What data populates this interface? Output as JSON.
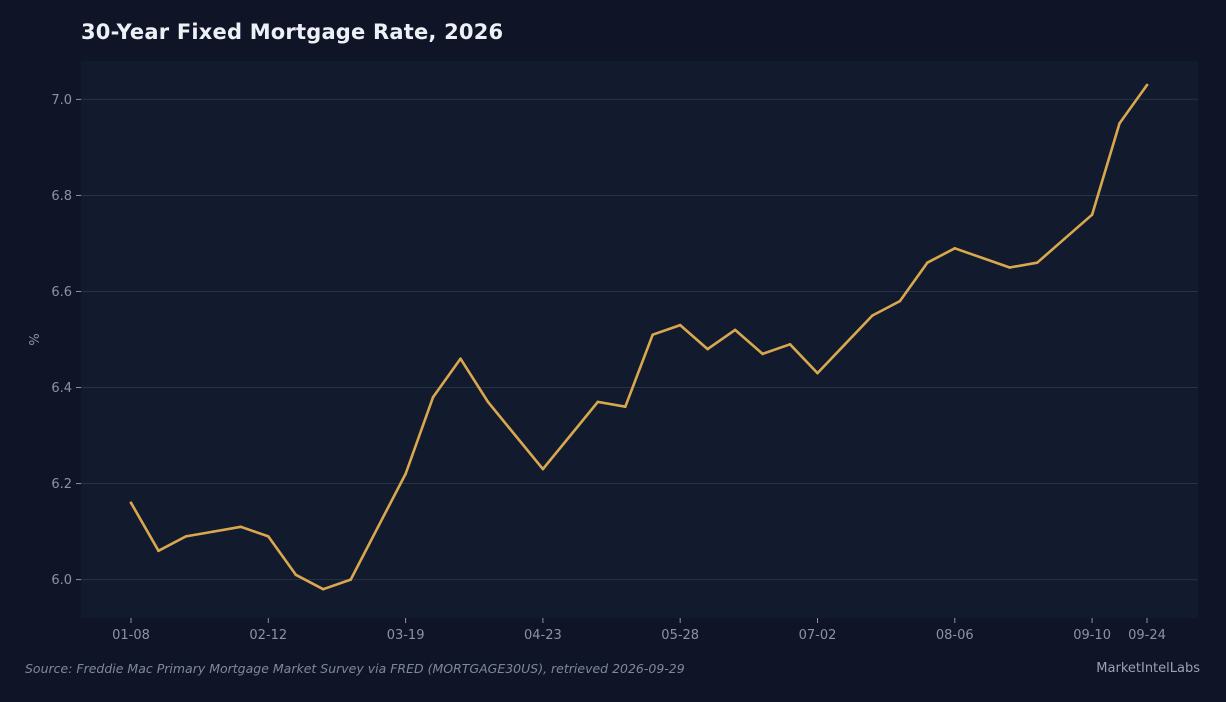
{
  "title": "30-Year Fixed Mortgage Rate, 2026",
  "source": "Source: Freddie Mac Primary Mortgage Market Survey via FRED (MORTGAGE30US), retrieved 2026-09-29",
  "brand": "MarketIntelLabs",
  "colors": {
    "page_background": "#0f1526",
    "plot_background": "#121b2e",
    "grid": "#263247",
    "line": "#d9a84e",
    "tick_text": "#8a93a6"
  },
  "chart_data": {
    "type": "line",
    "title": "30-Year Fixed Mortgage Rate, 2026",
    "xlabel": "",
    "ylabel": "%",
    "ylim": [
      5.92,
      7.08
    ],
    "yticks": [
      6.0,
      6.2,
      6.4,
      6.6,
      6.8,
      7.0
    ],
    "ytick_labels": [
      "6.0",
      "6.2",
      "6.4",
      "6.6",
      "6.8",
      "7.0"
    ],
    "xtick_labels": [
      "01-08",
      "02-12",
      "03-19",
      "04-23",
      "05-28",
      "07-02",
      "08-06",
      "09-10",
      "09-24"
    ],
    "grid": true,
    "x": [
      "01-08",
      "01-15",
      "01-22",
      "01-29",
      "02-05",
      "02-12",
      "02-19",
      "02-26",
      "03-05",
      "03-12",
      "03-19",
      "03-26",
      "04-02",
      "04-09",
      "04-16",
      "04-23",
      "04-30",
      "05-07",
      "05-14",
      "05-21",
      "05-28",
      "06-04",
      "06-11",
      "06-18",
      "06-25",
      "07-02",
      "07-09",
      "07-16",
      "07-23",
      "07-30",
      "08-06",
      "08-13",
      "08-20",
      "08-27",
      "09-03",
      "09-10",
      "09-17",
      "09-24"
    ],
    "series": [
      {
        "values": [
          6.16,
          6.06,
          6.09,
          6.1,
          6.11,
          6.09,
          6.01,
          5.98,
          6.0,
          6.11,
          6.22,
          6.38,
          6.46,
          6.37,
          6.3,
          6.23,
          6.3,
          6.37,
          6.36,
          6.51,
          6.53,
          6.48,
          6.52,
          6.47,
          6.49,
          6.43,
          6.49,
          6.55,
          6.58,
          6.66,
          6.69,
          6.67,
          6.65,
          6.66,
          6.71,
          6.76,
          6.95,
          7.03
        ]
      }
    ]
  }
}
